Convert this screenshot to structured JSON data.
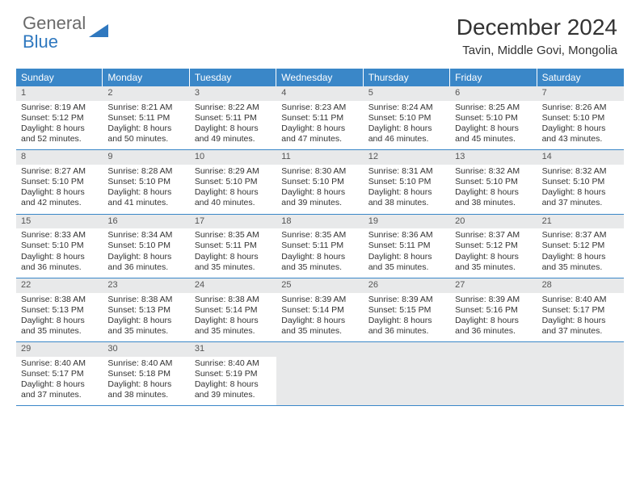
{
  "logo": {
    "general": "General",
    "blue": "Blue"
  },
  "title": "December 2024",
  "location": "Tavin, Middle Govi, Mongolia",
  "weekdays": [
    "Sunday",
    "Monday",
    "Tuesday",
    "Wednesday",
    "Thursday",
    "Friday",
    "Saturday"
  ],
  "colors": {
    "header_bg": "#3a87c8",
    "header_text": "#ffffff",
    "daynum_bg": "#e8e9ea",
    "border": "#3a87c8",
    "logo_gray": "#6a6a6a",
    "logo_blue": "#2f78bf",
    "text": "#333333"
  },
  "days": [
    {
      "n": "1",
      "sr": "8:19 AM",
      "ss": "5:12 PM",
      "dl": "8 hours and 52 minutes."
    },
    {
      "n": "2",
      "sr": "8:21 AM",
      "ss": "5:11 PM",
      "dl": "8 hours and 50 minutes."
    },
    {
      "n": "3",
      "sr": "8:22 AM",
      "ss": "5:11 PM",
      "dl": "8 hours and 49 minutes."
    },
    {
      "n": "4",
      "sr": "8:23 AM",
      "ss": "5:11 PM",
      "dl": "8 hours and 47 minutes."
    },
    {
      "n": "5",
      "sr": "8:24 AM",
      "ss": "5:10 PM",
      "dl": "8 hours and 46 minutes."
    },
    {
      "n": "6",
      "sr": "8:25 AM",
      "ss": "5:10 PM",
      "dl": "8 hours and 45 minutes."
    },
    {
      "n": "7",
      "sr": "8:26 AM",
      "ss": "5:10 PM",
      "dl": "8 hours and 43 minutes."
    },
    {
      "n": "8",
      "sr": "8:27 AM",
      "ss": "5:10 PM",
      "dl": "8 hours and 42 minutes."
    },
    {
      "n": "9",
      "sr": "8:28 AM",
      "ss": "5:10 PM",
      "dl": "8 hours and 41 minutes."
    },
    {
      "n": "10",
      "sr": "8:29 AM",
      "ss": "5:10 PM",
      "dl": "8 hours and 40 minutes."
    },
    {
      "n": "11",
      "sr": "8:30 AM",
      "ss": "5:10 PM",
      "dl": "8 hours and 39 minutes."
    },
    {
      "n": "12",
      "sr": "8:31 AM",
      "ss": "5:10 PM",
      "dl": "8 hours and 38 minutes."
    },
    {
      "n": "13",
      "sr": "8:32 AM",
      "ss": "5:10 PM",
      "dl": "8 hours and 38 minutes."
    },
    {
      "n": "14",
      "sr": "8:32 AM",
      "ss": "5:10 PM",
      "dl": "8 hours and 37 minutes."
    },
    {
      "n": "15",
      "sr": "8:33 AM",
      "ss": "5:10 PM",
      "dl": "8 hours and 36 minutes."
    },
    {
      "n": "16",
      "sr": "8:34 AM",
      "ss": "5:10 PM",
      "dl": "8 hours and 36 minutes."
    },
    {
      "n": "17",
      "sr": "8:35 AM",
      "ss": "5:11 PM",
      "dl": "8 hours and 35 minutes."
    },
    {
      "n": "18",
      "sr": "8:35 AM",
      "ss": "5:11 PM",
      "dl": "8 hours and 35 minutes."
    },
    {
      "n": "19",
      "sr": "8:36 AM",
      "ss": "5:11 PM",
      "dl": "8 hours and 35 minutes."
    },
    {
      "n": "20",
      "sr": "8:37 AM",
      "ss": "5:12 PM",
      "dl": "8 hours and 35 minutes."
    },
    {
      "n": "21",
      "sr": "8:37 AM",
      "ss": "5:12 PM",
      "dl": "8 hours and 35 minutes."
    },
    {
      "n": "22",
      "sr": "8:38 AM",
      "ss": "5:13 PM",
      "dl": "8 hours and 35 minutes."
    },
    {
      "n": "23",
      "sr": "8:38 AM",
      "ss": "5:13 PM",
      "dl": "8 hours and 35 minutes."
    },
    {
      "n": "24",
      "sr": "8:38 AM",
      "ss": "5:14 PM",
      "dl": "8 hours and 35 minutes."
    },
    {
      "n": "25",
      "sr": "8:39 AM",
      "ss": "5:14 PM",
      "dl": "8 hours and 35 minutes."
    },
    {
      "n": "26",
      "sr": "8:39 AM",
      "ss": "5:15 PM",
      "dl": "8 hours and 36 minutes."
    },
    {
      "n": "27",
      "sr": "8:39 AM",
      "ss": "5:16 PM",
      "dl": "8 hours and 36 minutes."
    },
    {
      "n": "28",
      "sr": "8:40 AM",
      "ss": "5:17 PM",
      "dl": "8 hours and 37 minutes."
    },
    {
      "n": "29",
      "sr": "8:40 AM",
      "ss": "5:17 PM",
      "dl": "8 hours and 37 minutes."
    },
    {
      "n": "30",
      "sr": "8:40 AM",
      "ss": "5:18 PM",
      "dl": "8 hours and 38 minutes."
    },
    {
      "n": "31",
      "sr": "8:40 AM",
      "ss": "5:19 PM",
      "dl": "8 hours and 39 minutes."
    }
  ],
  "labels": {
    "sunrise": "Sunrise: ",
    "sunset": "Sunset: ",
    "daylight": "Daylight: "
  }
}
